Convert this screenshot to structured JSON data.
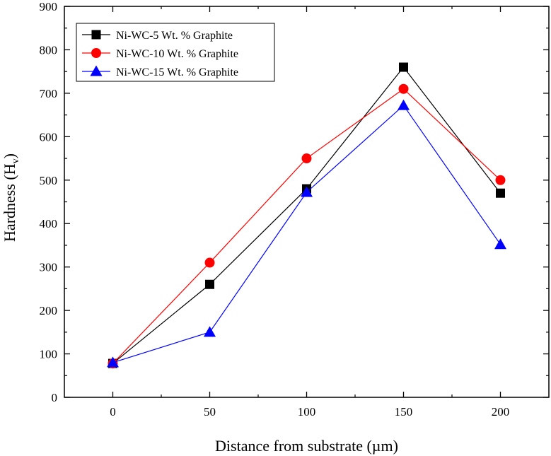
{
  "chart_data": {
    "type": "line",
    "title": "",
    "xlabel": "Distance from substrate (µm)",
    "ylabel_main": "Hardness (H",
    "ylabel_sub": "v",
    "ylabel_close": ")",
    "x": [
      0,
      50,
      100,
      150,
      200
    ],
    "xlim": [
      -25,
      225
    ],
    "ylim": [
      0,
      900
    ],
    "xticks": [
      0,
      50,
      100,
      150,
      200
    ],
    "yticks": [
      0,
      100,
      200,
      300,
      400,
      500,
      600,
      700,
      800,
      900
    ],
    "legend_position": "top-left",
    "series": [
      {
        "name": "Ni-WC-5 Wt. % Graphite",
        "values": [
          78,
          260,
          480,
          760,
          470
        ],
        "color": "#000000",
        "marker": "square"
      },
      {
        "name": "Ni-WC-10 Wt. % Graphite",
        "values": [
          78,
          310,
          550,
          710,
          500
        ],
        "color": "#ff0000",
        "marker": "circle"
      },
      {
        "name": "Ni-WC-15 Wt. % Graphite",
        "values": [
          80,
          150,
          472,
          672,
          352
        ],
        "color": "#0000ff",
        "marker": "triangle"
      }
    ]
  }
}
